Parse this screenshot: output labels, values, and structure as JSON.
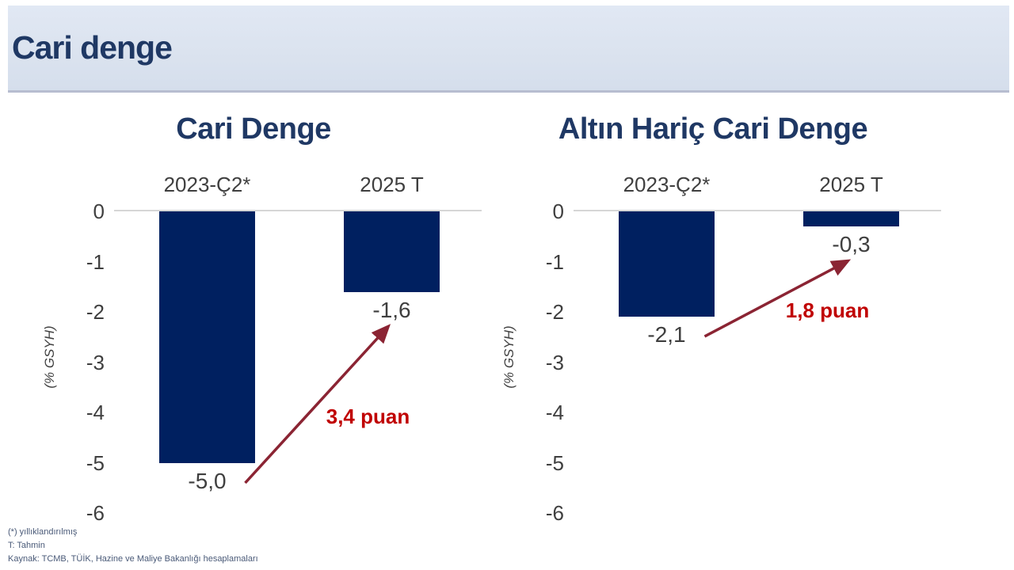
{
  "header": {
    "title": "Cari denge"
  },
  "colors": {
    "header_bg": "#dbe3ef",
    "title_navy": "#1f3864",
    "bar": "#002060",
    "axis_text": "#3f3f3f",
    "zero_line": "#d6d6d6",
    "arrow": "#8b2433",
    "annotation_red": "#c00000",
    "footer_text": "#4a5a78"
  },
  "chart_data": [
    {
      "type": "bar",
      "title": "Cari Denge",
      "categories": [
        "2023-Ç2*",
        "2025 T"
      ],
      "values": [
        -5.0,
        -1.6
      ],
      "value_labels": [
        "-5,0",
        "-1,6"
      ],
      "annotation": "3,4 puan",
      "ylabel": "(% GSYH)",
      "xlabel": "",
      "yticks": [
        0,
        -1,
        -2,
        -3,
        -4,
        -5,
        -6
      ],
      "ylim": [
        -6,
        0
      ],
      "grid": false,
      "legend_position": "none"
    },
    {
      "type": "bar",
      "title": "Altın Hariç Cari Denge",
      "categories": [
        "2023-Ç2*",
        "2025 T"
      ],
      "values": [
        -2.1,
        -0.3
      ],
      "value_labels": [
        "-2,1",
        "-0,3"
      ],
      "annotation": "1,8 puan",
      "ylabel": "(% GSYH)",
      "xlabel": "",
      "yticks": [
        0,
        -1,
        -2,
        -3,
        -4,
        -5,
        -6
      ],
      "ylim": [
        -6,
        0
      ],
      "grid": false,
      "legend_position": "none"
    }
  ],
  "footnotes": [
    "(*) yıllıklandırılmış",
    "T: Tahmin",
    "Kaynak: TCMB, TÜİK, Hazine ve Maliye Bakanlığı hesaplamaları"
  ]
}
